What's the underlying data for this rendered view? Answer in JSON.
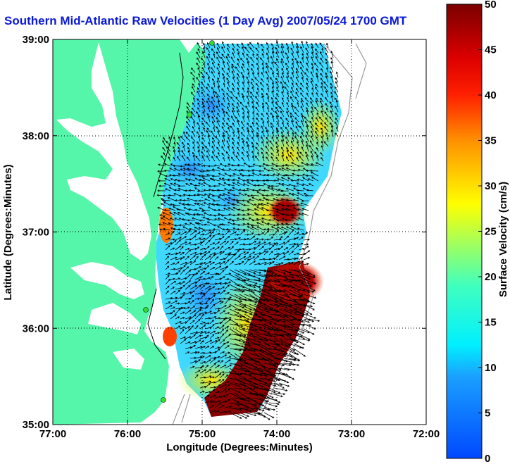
{
  "title": "Southern Mid-Atlantic Raw Velocities (1 Day Avg) 2007/05/24 1700 GMT",
  "map": {
    "xlabel": "Longitude (Degrees:Minutes)",
    "ylabel": "Latitude (Degrees:Minutes)",
    "x_ticks": [
      "77:00",
      "76:00",
      "75:00",
      "74:00",
      "73:00",
      "72:00"
    ],
    "y_ticks": [
      "39:00",
      "38:00",
      "37:00",
      "36:00",
      "35:00"
    ],
    "x_range": [
      -77,
      -72
    ],
    "y_range": [
      35,
      39
    ],
    "land_color": "#55f5aa",
    "water_color": "#ffffff",
    "station_color": "#33dd33"
  },
  "colorbar": {
    "label": "Surface Velocity (cm/s)",
    "ticks": [
      "0",
      "5",
      "10",
      "15",
      "20",
      "25",
      "30",
      "35",
      "40",
      "45",
      "50"
    ],
    "range": [
      0,
      50
    ]
  }
}
